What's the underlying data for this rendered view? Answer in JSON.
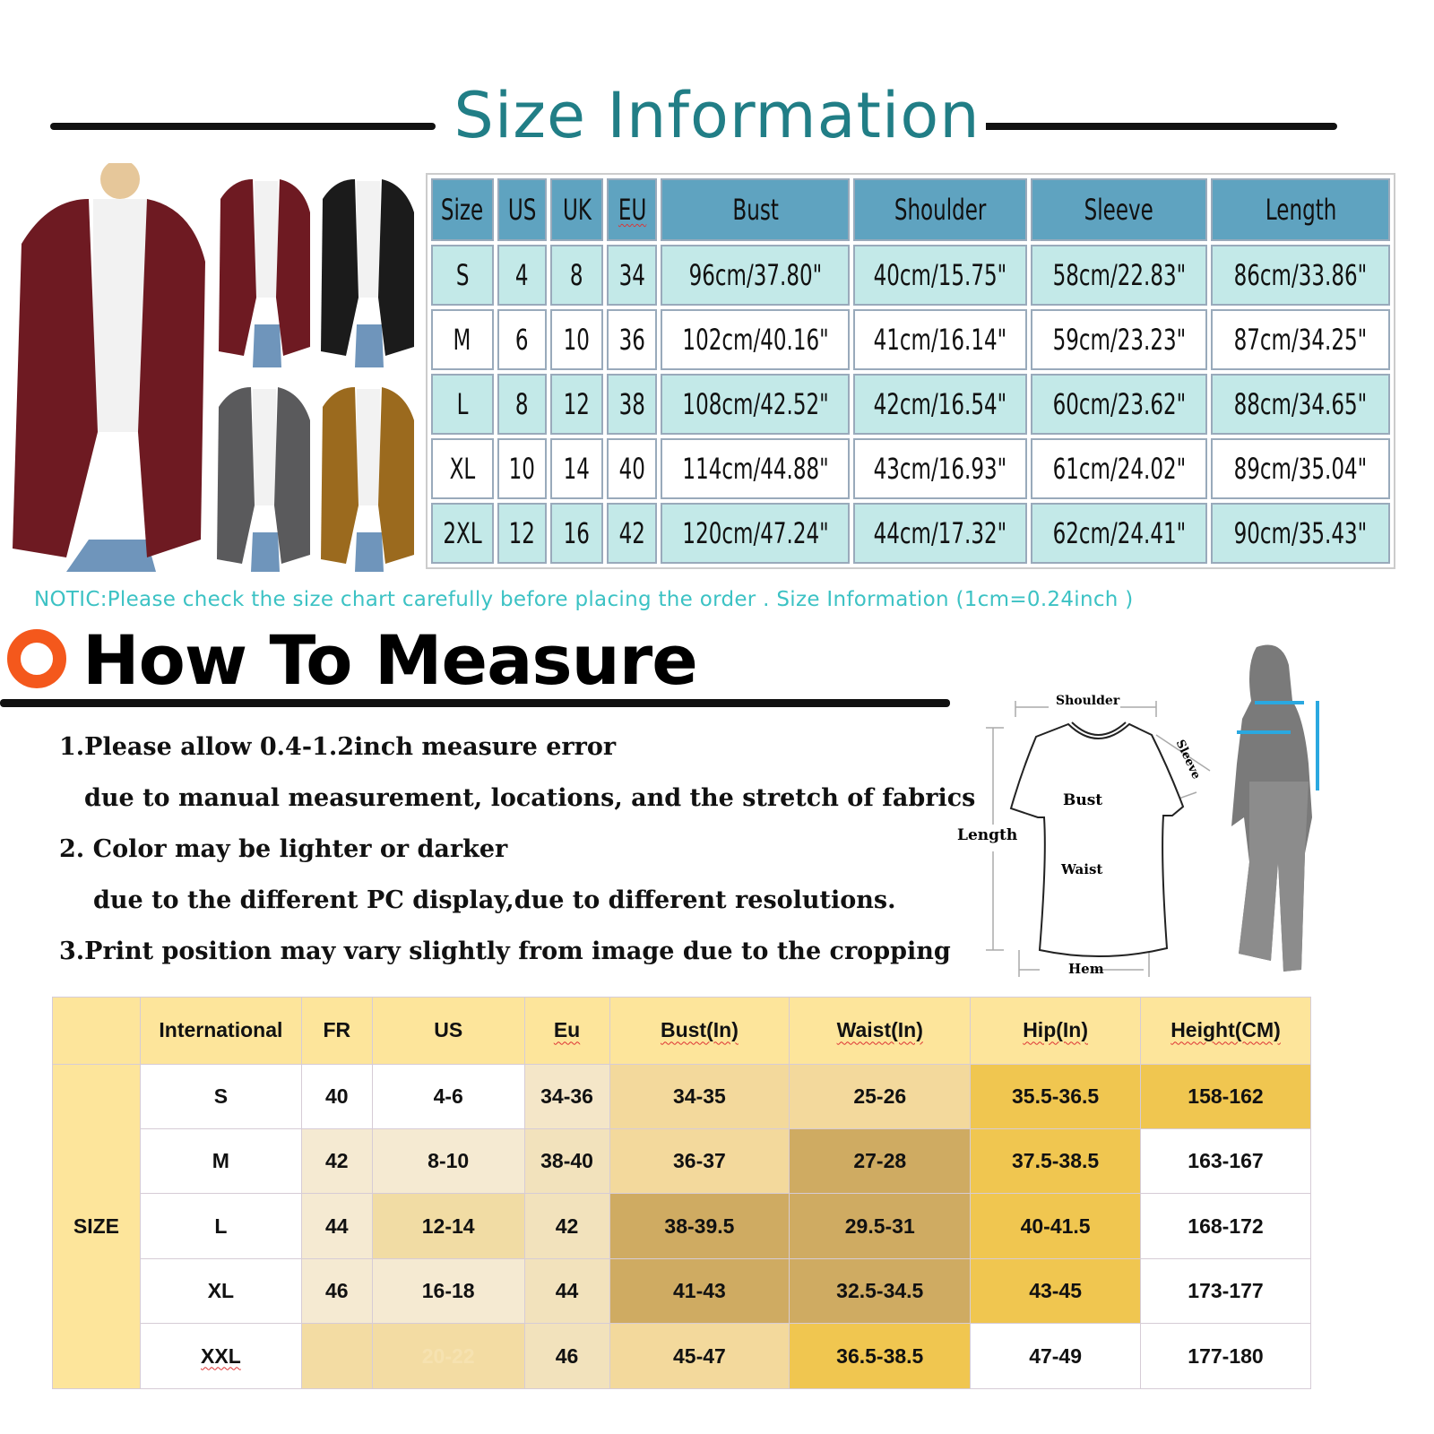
{
  "header": {
    "title": "Size Information"
  },
  "product_photos": [
    {
      "color_name": "wine-red",
      "color": "#6e1a22"
    },
    {
      "color_name": "wine-red",
      "color": "#6e1a22"
    },
    {
      "color_name": "black",
      "color": "#1b1b1b"
    },
    {
      "color_name": "grey",
      "color": "#5a5a5c"
    },
    {
      "color_name": "gold-brown",
      "color": "#9b6a1e"
    }
  ],
  "size_chart": {
    "columns": [
      "Size",
      "US",
      "UK",
      "EU",
      "Bust",
      "Shoulder",
      "Sleeve",
      "Length"
    ],
    "rows": [
      [
        "S",
        "4",
        "8",
        "34",
        "96cm/37.80\"",
        "40cm/15.75\"",
        "58cm/22.83\"",
        "86cm/33.86\""
      ],
      [
        "M",
        "6",
        "10",
        "36",
        "102cm/40.16\"",
        "41cm/16.14\"",
        "59cm/23.23\"",
        "87cm/34.25\""
      ],
      [
        "L",
        "8",
        "12",
        "38",
        "108cm/42.52\"",
        "42cm/16.54\"",
        "60cm/23.62\"",
        "88cm/34.65\""
      ],
      [
        "XL",
        "10",
        "14",
        "40",
        "114cm/44.88\"",
        "43cm/16.93\"",
        "61cm/24.02\"",
        "89cm/35.04\""
      ],
      [
        "2XL",
        "12",
        "16",
        "42",
        "120cm/47.24\"",
        "44cm/17.32\"",
        "62cm/24.41\"",
        "90cm/35.43\""
      ]
    ],
    "colors": {
      "header": "#5fa3c0",
      "alt_row": "#c3e9e8"
    }
  },
  "notice": "NOTIC:Please check the size chart carefully before placing the order . Size Information (1cm=0.24inch )",
  "how_to_measure": {
    "title": "How To Measure",
    "notes": [
      "1.Please allow 0.4-1.2inch measure error",
      "due to manual measurement, locations, and the stretch of fabrics",
      "2. Color may be lighter or darker",
      "due to the different PC display,due to different resolutions.",
      "3.Print position may vary slightly from image due to the cropping"
    ],
    "diagram_labels": {
      "shoulder": "Shoulder",
      "sleeve": "Sleeve",
      "bust": "Bust",
      "length": "Length",
      "waist": "Waist",
      "hem": "Hem"
    }
  },
  "conversion_chart": {
    "group_label": "SIZE",
    "columns": [
      "International",
      "FR",
      "US",
      "Eu",
      "Bust(In)",
      "Waist(In)",
      "Hip(In)",
      "Height(CM)"
    ],
    "rows": [
      [
        "S",
        "40",
        "4-6",
        "34-36",
        "34-35",
        "25-26",
        "35.5-36.5",
        "158-162"
      ],
      [
        "M",
        "42",
        "8-10",
        "38-40",
        "36-37",
        "27-28",
        "37.5-38.5",
        "163-167"
      ],
      [
        "L",
        "44",
        "12-14",
        "42",
        "38-39.5",
        "29.5-31",
        "40-41.5",
        "168-172"
      ],
      [
        "XL",
        "46",
        "16-18",
        "44",
        "41-43",
        "32.5-34.5",
        "43-45",
        "173-177"
      ],
      [
        "XXL",
        "",
        "20-22",
        "46",
        "45-47",
        "36.5-38.5",
        "47-49",
        "177-180"
      ]
    ],
    "cell_colors": [
      [
        "#ffffff",
        "#ffffff",
        "#ffffff",
        "#f4e6c8",
        "#f3d99c",
        "#f3d99c",
        "#f0c650",
        "#f0c650"
      ],
      [
        "#ffffff",
        "#f5ead2",
        "#f5ead2",
        "#f2e2bc",
        "#f3d99c",
        "#cfab62",
        "#f0c650",
        "#ffffff"
      ],
      [
        "#ffffff",
        "#f5ead2",
        "#f1dca4",
        "#f2e2bc",
        "#cfab62",
        "#cfab62",
        "#f0c650",
        "#ffffff"
      ],
      [
        "#ffffff",
        "#f5ead2",
        "#f5ead2",
        "#f2e2bc",
        "#cfab62",
        "#cfab62",
        "#f0c650",
        "#ffffff"
      ],
      [
        "#ffffff",
        "#f3dca3",
        "#f3dca3",
        "#f2e2bc",
        "#f3d99c",
        "#f0c650",
        "#ffffff",
        "#ffffff"
      ]
    ],
    "header_color": "#fde59b"
  }
}
